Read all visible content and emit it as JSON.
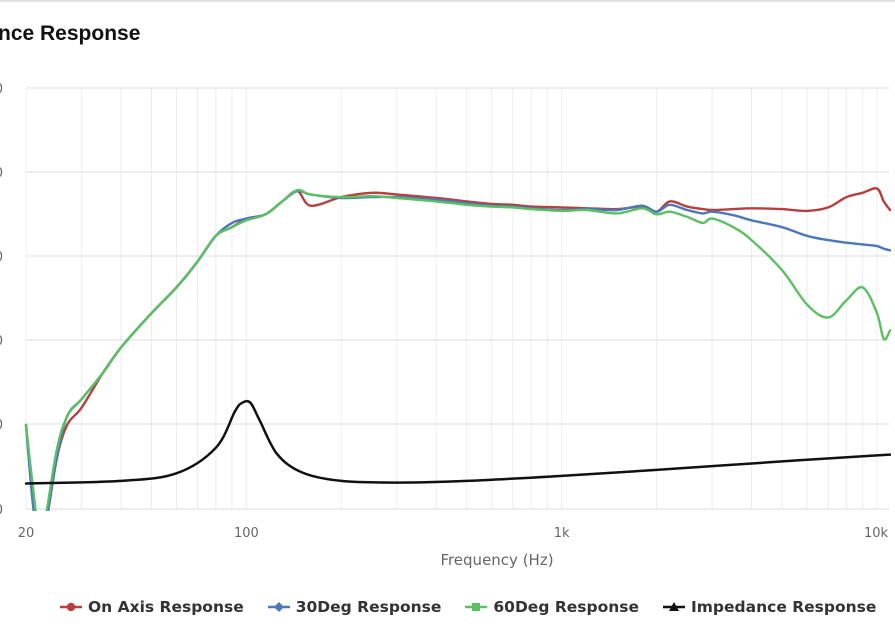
{
  "chart_data": {
    "type": "line",
    "title": "nce Response",
    "xlabel": "Frequency (Hz)",
    "ylabel": "",
    "x_scale": "log",
    "xlim": [
      20,
      11000
    ],
    "x_ticks": [
      {
        "value": 20,
        "label": "20"
      },
      {
        "value": 100,
        "label": "100"
      },
      {
        "value": 1000,
        "label": "1k"
      },
      {
        "value": 10000,
        "label": "10k"
      }
    ],
    "grid": true,
    "legend_position": "bottom",
    "y_tick_marks": [
      "0",
      "0",
      "0",
      "0",
      "0",
      "0"
    ],
    "series": [
      {
        "name": "On Axis Response",
        "color": "#b5403f",
        "marker": "circle",
        "points": [
          [
            20,
            70
          ],
          [
            21,
            62
          ],
          [
            22,
            57
          ],
          [
            23,
            58
          ],
          [
            25,
            66
          ],
          [
            27,
            70
          ],
          [
            30,
            72
          ],
          [
            35,
            76
          ],
          [
            40,
            79
          ],
          [
            50,
            83
          ],
          [
            60,
            86
          ],
          [
            70,
            89
          ],
          [
            80,
            92
          ],
          [
            90,
            93
          ],
          [
            100,
            94
          ],
          [
            115,
            94.5
          ],
          [
            130,
            96
          ],
          [
            145,
            97.2
          ],
          [
            160,
            95.5
          ],
          [
            200,
            96.5
          ],
          [
            250,
            97
          ],
          [
            300,
            96.8
          ],
          [
            400,
            96.4
          ],
          [
            500,
            96
          ],
          [
            600,
            95.7
          ],
          [
            700,
            95.6
          ],
          [
            800,
            95.4
          ],
          [
            1000,
            95.3
          ],
          [
            1200,
            95.2
          ],
          [
            1500,
            95.1
          ],
          [
            1800,
            95.4
          ],
          [
            2000,
            94.8
          ],
          [
            2200,
            96
          ],
          [
            2500,
            95.4
          ],
          [
            2800,
            95.1
          ],
          [
            3000,
            95
          ],
          [
            3500,
            95.1
          ],
          [
            4000,
            95.2
          ],
          [
            5000,
            95.1
          ],
          [
            6000,
            94.9
          ],
          [
            7000,
            95.3
          ],
          [
            8000,
            96.5
          ],
          [
            9000,
            97
          ],
          [
            10000,
            97.5
          ],
          [
            10500,
            96
          ],
          [
            11000,
            95
          ]
        ]
      },
      {
        "name": "30Deg Response",
        "color": "#4a78b8",
        "marker": "diamond",
        "points": [
          [
            20,
            70
          ],
          [
            21,
            61
          ],
          [
            22,
            56
          ],
          [
            23,
            58
          ],
          [
            25,
            66
          ],
          [
            27,
            71
          ],
          [
            30,
            73
          ],
          [
            35,
            76
          ],
          [
            40,
            79
          ],
          [
            50,
            83
          ],
          [
            60,
            86
          ],
          [
            70,
            89
          ],
          [
            80,
            92
          ],
          [
            90,
            93.5
          ],
          [
            100,
            94
          ],
          [
            115,
            94.5
          ],
          [
            130,
            96
          ],
          [
            145,
            97.2
          ],
          [
            160,
            96.8
          ],
          [
            200,
            96.4
          ],
          [
            250,
            96.5
          ],
          [
            300,
            96.5
          ],
          [
            400,
            96.2
          ],
          [
            500,
            95.8
          ],
          [
            600,
            95.5
          ],
          [
            700,
            95.4
          ],
          [
            800,
            95.2
          ],
          [
            1000,
            95
          ],
          [
            1200,
            95.1
          ],
          [
            1500,
            95
          ],
          [
            1800,
            95.5
          ],
          [
            2000,
            94.8
          ],
          [
            2200,
            95.6
          ],
          [
            2500,
            95
          ],
          [
            2800,
            94.6
          ],
          [
            3000,
            94.8
          ],
          [
            3500,
            94.4
          ],
          [
            4000,
            93.8
          ],
          [
            5000,
            93
          ],
          [
            6000,
            92
          ],
          [
            7000,
            91.5
          ],
          [
            8000,
            91.2
          ],
          [
            9000,
            91
          ],
          [
            10000,
            90.8
          ],
          [
            10500,
            90.5
          ],
          [
            11000,
            90.3
          ]
        ]
      },
      {
        "name": "60Deg Response",
        "color": "#5bbf63",
        "marker": "square",
        "points": [
          [
            20,
            70
          ],
          [
            21,
            63
          ],
          [
            22,
            57.5
          ],
          [
            23,
            59
          ],
          [
            25,
            67
          ],
          [
            27,
            71
          ],
          [
            30,
            73
          ],
          [
            35,
            76
          ],
          [
            40,
            79
          ],
          [
            50,
            83
          ],
          [
            60,
            86
          ],
          [
            70,
            89
          ],
          [
            80,
            92
          ],
          [
            90,
            93
          ],
          [
            100,
            93.8
          ],
          [
            115,
            94.5
          ],
          [
            130,
            96
          ],
          [
            145,
            97.3
          ],
          [
            160,
            96.8
          ],
          [
            200,
            96.5
          ],
          [
            250,
            96.6
          ],
          [
            300,
            96.4
          ],
          [
            400,
            96
          ],
          [
            500,
            95.6
          ],
          [
            600,
            95.4
          ],
          [
            700,
            95.3
          ],
          [
            800,
            95.1
          ],
          [
            1000,
            94.9
          ],
          [
            1200,
            95
          ],
          [
            1500,
            94.6
          ],
          [
            1800,
            95.2
          ],
          [
            2000,
            94.5
          ],
          [
            2200,
            94.8
          ],
          [
            2500,
            94.2
          ],
          [
            2800,
            93.5
          ],
          [
            3000,
            94
          ],
          [
            3500,
            93
          ],
          [
            4000,
            91.5
          ],
          [
            5000,
            88
          ],
          [
            6000,
            84
          ],
          [
            7000,
            82.5
          ],
          [
            8000,
            84.5
          ],
          [
            9000,
            86
          ],
          [
            10000,
            83
          ],
          [
            10500,
            80
          ],
          [
            11000,
            81
          ]
        ]
      },
      {
        "name": "Impedance Response",
        "color": "#111111",
        "marker": "triangle",
        "points": [
          [
            20,
            3
          ],
          [
            40,
            3.3
          ],
          [
            60,
            4.2
          ],
          [
            80,
            7.2
          ],
          [
            92,
            11.5
          ],
          [
            97,
            12.5
          ],
          [
            103,
            12.5
          ],
          [
            110,
            10.5
          ],
          [
            125,
            6.5
          ],
          [
            150,
            4.3
          ],
          [
            200,
            3.3
          ],
          [
            300,
            3.1
          ],
          [
            500,
            3.3
          ],
          [
            1000,
            3.9
          ],
          [
            2000,
            4.6
          ],
          [
            5000,
            5.6
          ],
          [
            10000,
            6.3
          ],
          [
            11000,
            6.4
          ]
        ]
      }
    ]
  }
}
